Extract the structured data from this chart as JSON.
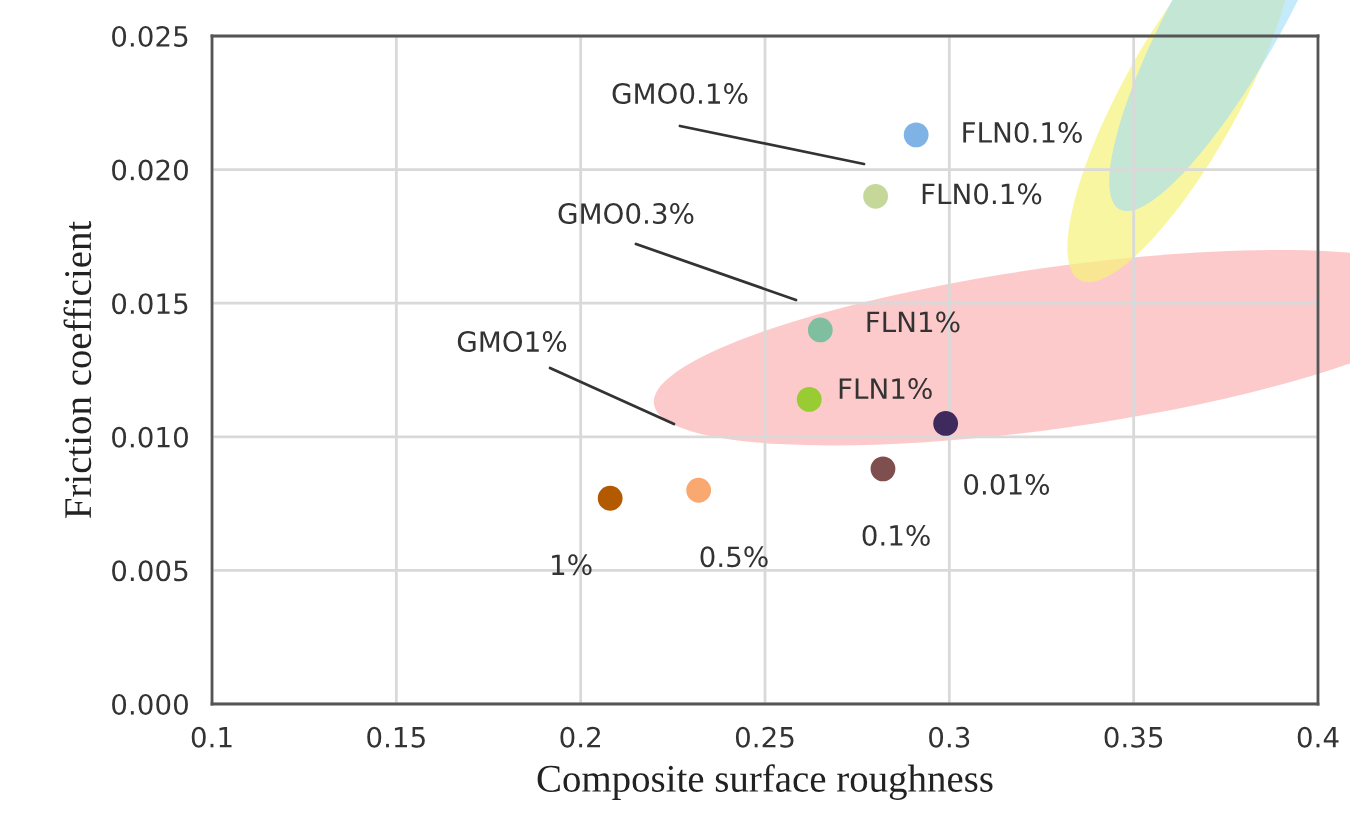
{
  "chart_data": {
    "type": "scatter",
    "xlabel": "Composite surface roughness",
    "ylabel": "Friction coefficient",
    "xlim": [
      0.1,
      0.4
    ],
    "xticks": [
      0.1,
      0.15,
      0.2,
      0.25,
      0.3,
      0.35,
      0.4
    ],
    "ylim": [
      0,
      0.025
    ],
    "yticks": [
      {
        "value": 0,
        "label": "0.000"
      },
      {
        "value": 0.005,
        "label": "0.005"
      },
      {
        "value": 0.01,
        "label": "0.010"
      },
      {
        "value": 0.015,
        "label": "0.015"
      },
      {
        "value": 0.02,
        "label": "0.020"
      },
      {
        "value": 0.025,
        "label": "0.025"
      }
    ],
    "grid": true,
    "marker": "circle",
    "series": [
      {
        "name": "FLN0.1%",
        "color": "#7fb2e5",
        "x": [
          0.291
        ],
        "values": [
          0.0213
        ]
      },
      {
        "name": "FLN0.1%",
        "color": "#c5d89a",
        "x": [
          0.28
        ],
        "values": [
          0.019
        ]
      },
      {
        "name": "FLN1%",
        "color": "#7fbfa0",
        "x": [
          0.265
        ],
        "values": [
          0.014
        ]
      },
      {
        "name": "FLN1%",
        "color": "#99cc33",
        "x": [
          0.262
        ],
        "values": [
          0.0114
        ]
      },
      {
        "name": "0.01%",
        "color": "#3f2a5e",
        "x": [
          0.299
        ],
        "values": [
          0.0105
        ]
      },
      {
        "name": "0.1%",
        "color": "#7f4f4f",
        "x": [
          0.282
        ],
        "values": [
          0.0088
        ]
      },
      {
        "name": "0.5%",
        "color": "#f9a870",
        "x": [
          0.232
        ],
        "values": [
          0.008
        ]
      },
      {
        "name": "1%",
        "color": "#b35900",
        "x": [
          0.208
        ],
        "values": [
          0.0077
        ]
      }
    ],
    "annotations": [
      "GMO0.1%",
      "GMO0.3%",
      "GMO1%"
    ]
  }
}
